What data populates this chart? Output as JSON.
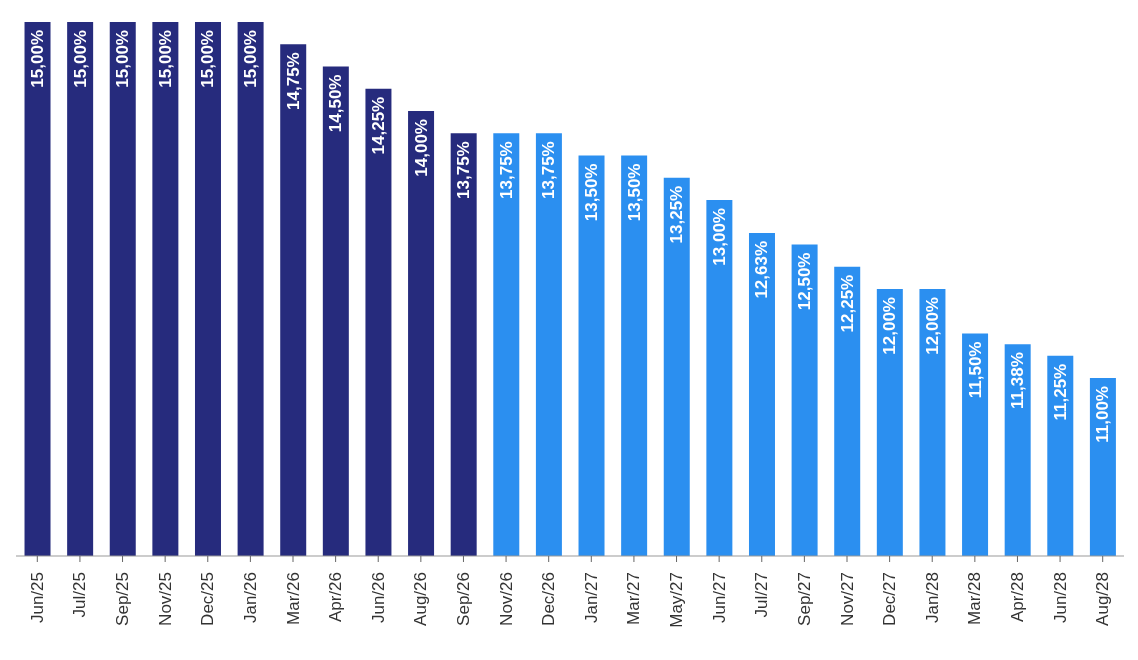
{
  "chart_data": {
    "type": "bar",
    "categories": [
      "Jun/25",
      "Jul/25",
      "Sep/25",
      "Nov/25",
      "Dec/25",
      "Jan/26",
      "Mar/26",
      "Apr/26",
      "Jun/26",
      "Aug/26",
      "Sep/26",
      "Nov/26",
      "Dec/26",
      "Jan/27",
      "Mar/27",
      "May/27",
      "Jun/27",
      "Jul/27",
      "Sep/27",
      "Nov/27",
      "Dec/27",
      "Jan/28",
      "Mar/28",
      "Apr/28",
      "Jun/28",
      "Aug/28"
    ],
    "values": [
      15.0,
      15.0,
      15.0,
      15.0,
      15.0,
      15.0,
      14.75,
      14.5,
      14.25,
      14.0,
      13.75,
      13.75,
      13.75,
      13.5,
      13.5,
      13.25,
      13.0,
      12.63,
      12.5,
      12.25,
      12.0,
      12.0,
      11.5,
      11.38,
      11.25,
      11.0
    ],
    "value_labels": [
      "15,00%",
      "15,00%",
      "15,00%",
      "15,00%",
      "15,00%",
      "15,00%",
      "14,75%",
      "14,50%",
      "14,25%",
      "14,00%",
      "13,75%",
      "13,75%",
      "13,75%",
      "13,50%",
      "13,50%",
      "13,25%",
      "13,00%",
      "12,63%",
      "12,50%",
      "12,25%",
      "12,00%",
      "12,00%",
      "11,50%",
      "11,38%",
      "11,25%",
      "11,00%"
    ],
    "colors": [
      "#262b7d",
      "#262b7d",
      "#262b7d",
      "#262b7d",
      "#262b7d",
      "#262b7d",
      "#262b7d",
      "#262b7d",
      "#262b7d",
      "#262b7d",
      "#262b7d",
      "#2b8ff0",
      "#2b8ff0",
      "#2b8ff0",
      "#2b8ff0",
      "#2b8ff0",
      "#2b8ff0",
      "#2b8ff0",
      "#2b8ff0",
      "#2b8ff0",
      "#2b8ff0",
      "#2b8ff0",
      "#2b8ff0",
      "#2b8ff0",
      "#2b8ff0",
      "#2b8ff0"
    ],
    "ylim": [
      9,
      15
    ],
    "grid": false,
    "legend": false
  }
}
